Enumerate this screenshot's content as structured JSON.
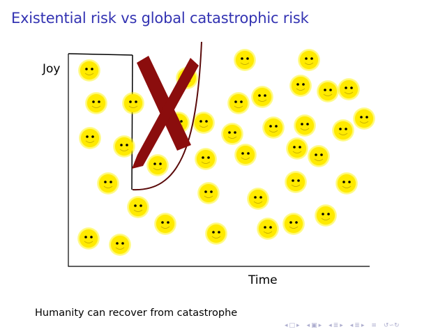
{
  "slide": {
    "title": "Existential risk vs global catastrophic risk",
    "y_axis_label": "Joy",
    "x_axis_label": "Time",
    "caption": "Humanity can recover from catastrophe"
  },
  "diagram": {
    "colors": {
      "title": "#3333b2",
      "smiley_fill": "#ffea00",
      "smiley_glow": "#fff200",
      "x_mark": "#8b0d0d",
      "curve": "#5a0a0a",
      "axis": "#000000"
    },
    "smiley_count": 44
  },
  "navigation": {
    "icons": [
      "first-slide-icon",
      "prev-slide-icon",
      "prev-frame-icon",
      "next-frame-icon",
      "prev-section-icon",
      "next-section-icon",
      "prev-subsection-icon",
      "next-subsection-icon",
      "toc-icon",
      "search-icon"
    ]
  }
}
